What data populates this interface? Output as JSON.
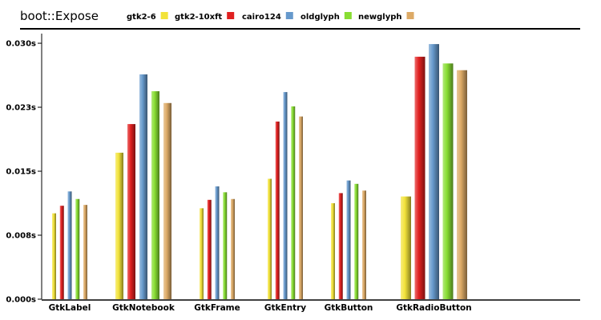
{
  "chart_data": {
    "type": "bar",
    "title": "boot::Expose",
    "categories": [
      "GtkLabel",
      "GtkNotebook",
      "GtkFrame",
      "GtkEntry",
      "GtkButton",
      "GtkRadioButton"
    ],
    "series": [
      {
        "name": "gtk2-6",
        "color": "#f2e33a",
        "values": [
          0.0102,
          0.0174,
          0.0108,
          0.0143,
          0.0114,
          0.0122
        ]
      },
      {
        "name": "gtk2-10xft",
        "color": "#e02020",
        "values": [
          0.0111,
          0.0208,
          0.0118,
          0.0211,
          0.0126,
          0.0288
        ]
      },
      {
        "name": "cairo124",
        "color": "#6699cc",
        "values": [
          0.0128,
          0.0267,
          0.0134,
          0.0246,
          0.0141,
          0.0303
        ]
      },
      {
        "name": "oldglyph",
        "color": "#88dd33",
        "values": [
          0.0119,
          0.0247,
          0.0127,
          0.0229,
          0.0137,
          0.028
        ]
      },
      {
        "name": "newglyph",
        "color": "#ddaa66",
        "values": [
          0.0112,
          0.0233,
          0.0119,
          0.0217,
          0.0129,
          0.0272
        ]
      }
    ],
    "ylim": [
      0,
      0.0305
    ],
    "yticks": [
      {
        "value": 0.0,
        "label": "0.000s"
      },
      {
        "value": 0.0076,
        "label": "0.008s"
      },
      {
        "value": 0.0152,
        "label": "0.015s"
      },
      {
        "value": 0.0228,
        "label": "0.023s"
      },
      {
        "value": 0.0304,
        "label": "0.030s"
      }
    ],
    "legend_position": "top",
    "grid": false
  }
}
